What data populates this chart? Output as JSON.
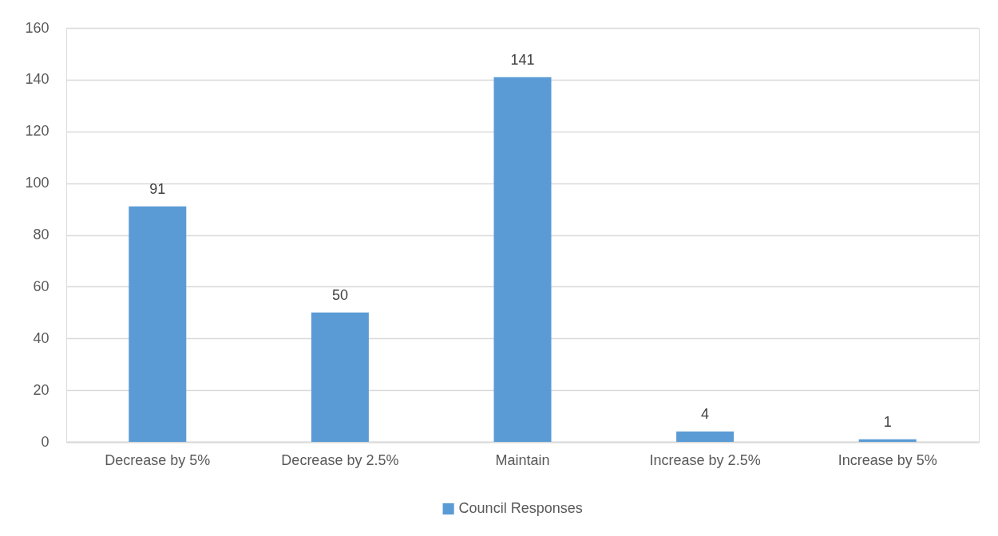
{
  "chart_data": {
    "type": "bar",
    "categories": [
      "Decrease by 5%",
      "Decrease by 2.5%",
      "Maintain",
      "Increase by 2.5%",
      "Increase by 5%"
    ],
    "series": [
      {
        "name": "Council Responses",
        "color": "#5b9bd5",
        "values": [
          91,
          50,
          141,
          4,
          1
        ]
      }
    ],
    "ylim": [
      0,
      160
    ],
    "yticks": [
      0,
      20,
      40,
      60,
      80,
      100,
      120,
      140,
      160
    ],
    "grid": "y",
    "legend": "bottom",
    "data_labels": true
  }
}
